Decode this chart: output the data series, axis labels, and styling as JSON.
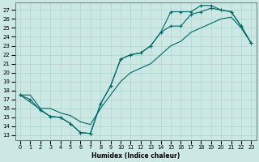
{
  "xlabel": "Humidex (Indice chaleur)",
  "bg_color": "#cce8e4",
  "grid_color": "#b0d8d0",
  "line_color": "#006666",
  "xlim": [
    -0.5,
    23.5
  ],
  "ylim": [
    12.5,
    27.8
  ],
  "xticks": [
    0,
    1,
    2,
    3,
    4,
    5,
    6,
    7,
    8,
    9,
    10,
    11,
    12,
    13,
    14,
    15,
    16,
    17,
    18,
    19,
    20,
    21,
    22,
    23
  ],
  "yticks": [
    13,
    14,
    15,
    16,
    17,
    18,
    19,
    20,
    21,
    22,
    23,
    24,
    25,
    26,
    27
  ],
  "line1_x": [
    0,
    1,
    2,
    3,
    4,
    5,
    6,
    7,
    8,
    9,
    10,
    11,
    12,
    13,
    14,
    15,
    16,
    17,
    18,
    19,
    20,
    21,
    22,
    23
  ],
  "line1_y": [
    17.5,
    17.0,
    15.8,
    15.1,
    15.0,
    14.3,
    13.3,
    13.2,
    16.5,
    18.5,
    21.5,
    22.0,
    22.2,
    23.0,
    24.5,
    25.2,
    25.2,
    26.5,
    26.8,
    27.2,
    27.0,
    26.8,
    25.2,
    23.3
  ],
  "line2_x": [
    0,
    1,
    2,
    3,
    4,
    5,
    6,
    7,
    8,
    9,
    10,
    11,
    12,
    13,
    14,
    15,
    16,
    17,
    18,
    19,
    20,
    21,
    22,
    23
  ],
  "line2_y": [
    17.5,
    17.5,
    16.0,
    16.0,
    15.5,
    15.2,
    14.5,
    14.2,
    16.0,
    17.5,
    19.0,
    20.0,
    20.5,
    21.0,
    22.0,
    23.0,
    23.5,
    24.5,
    25.0,
    25.5,
    26.0,
    26.2,
    25.0,
    23.3
  ],
  "line3_x": [
    0,
    3,
    4,
    5,
    6,
    7,
    8,
    9,
    10,
    11,
    12,
    13,
    14,
    15,
    16,
    17,
    18,
    19,
    20,
    21,
    22,
    23
  ],
  "line3_y": [
    17.5,
    15.1,
    15.0,
    14.3,
    13.3,
    13.2,
    16.5,
    18.5,
    21.5,
    22.0,
    22.2,
    23.0,
    24.5,
    26.8,
    26.8,
    26.8,
    27.5,
    27.5,
    27.0,
    26.8,
    25.2,
    23.3
  ]
}
